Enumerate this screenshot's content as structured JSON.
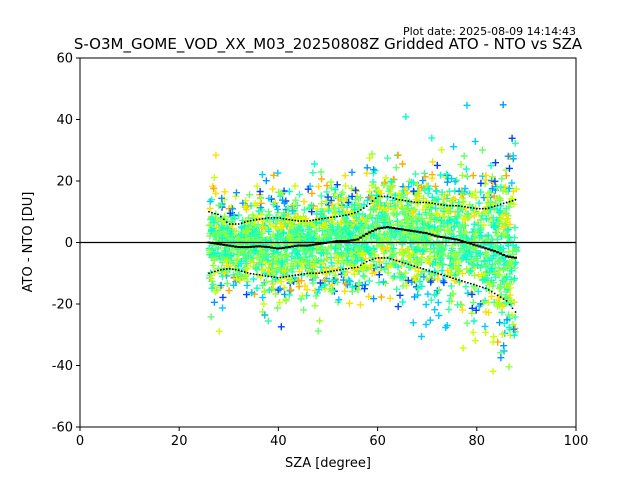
{
  "chart_data": {
    "type": "scatter",
    "title": "S-O3M_GOME_VOD_XX_M03_20250808Z Gridded ATO - NTO vs SZA",
    "plot_date": "Plot date: 2025-08-09 14:14:43",
    "xlabel": "SZA [degree]",
    "ylabel": "ATO - NTO [DU]",
    "xlim": [
      0,
      100
    ],
    "ylim": [
      -60,
      60
    ],
    "xticks": [
      0,
      20,
      40,
      60,
      80,
      100
    ],
    "yticks": [
      -60,
      -40,
      -20,
      0,
      20,
      40,
      60
    ],
    "grid": false,
    "zero_line": 0,
    "marker": "+",
    "point_colors": [
      "#00ffcc",
      "#33ffaa",
      "#66ff66",
      "#99ff33",
      "#ccff00",
      "#ffdd00",
      "#ffaa00",
      "#00ccff",
      "#0099ff",
      "#0044ff"
    ],
    "median_color": "#000000",
    "percentile_color": "#000000",
    "sza_range": [
      26,
      88
    ],
    "median": [
      [
        26,
        0
      ],
      [
        28,
        -0.5
      ],
      [
        30,
        -1
      ],
      [
        32,
        -1.5
      ],
      [
        34,
        -1.5
      ],
      [
        36,
        -1.2
      ],
      [
        38,
        -1.5
      ],
      [
        40,
        -2
      ],
      [
        42,
        -1.5
      ],
      [
        44,
        -1
      ],
      [
        46,
        -1
      ],
      [
        48,
        -0.5
      ],
      [
        50,
        0
      ],
      [
        52,
        0.5
      ],
      [
        54,
        0.5
      ],
      [
        56,
        1
      ],
      [
        58,
        3
      ],
      [
        60,
        4.5
      ],
      [
        62,
        5
      ],
      [
        64,
        4.5
      ],
      [
        66,
        4
      ],
      [
        68,
        3.5
      ],
      [
        70,
        3
      ],
      [
        72,
        2
      ],
      [
        74,
        1.5
      ],
      [
        76,
        1
      ],
      [
        78,
        0
      ],
      [
        80,
        -1
      ],
      [
        82,
        -2
      ],
      [
        84,
        -3
      ],
      [
        86,
        -4.5
      ],
      [
        88,
        -5
      ]
    ],
    "upper_percentile": [
      [
        26,
        10
      ],
      [
        28,
        9
      ],
      [
        30,
        6
      ],
      [
        32,
        6
      ],
      [
        34,
        7
      ],
      [
        36,
        7.5
      ],
      [
        38,
        8
      ],
      [
        40,
        8
      ],
      [
        42,
        7.5
      ],
      [
        44,
        7
      ],
      [
        46,
        7
      ],
      [
        48,
        7.5
      ],
      [
        50,
        8
      ],
      [
        52,
        8.5
      ],
      [
        54,
        9
      ],
      [
        56,
        10
      ],
      [
        58,
        12
      ],
      [
        60,
        15
      ],
      [
        62,
        15
      ],
      [
        64,
        14
      ],
      [
        66,
        13.5
      ],
      [
        68,
        13
      ],
      [
        70,
        13
      ],
      [
        72,
        12.5
      ],
      [
        74,
        12
      ],
      [
        76,
        12
      ],
      [
        78,
        11.5
      ],
      [
        80,
        11
      ],
      [
        82,
        11
      ],
      [
        84,
        12
      ],
      [
        86,
        13
      ],
      [
        88,
        14
      ]
    ],
    "lower_percentile": [
      [
        26,
        -10
      ],
      [
        28,
        -9
      ],
      [
        30,
        -8.5
      ],
      [
        32,
        -9
      ],
      [
        34,
        -10
      ],
      [
        36,
        -10.5
      ],
      [
        38,
        -11
      ],
      [
        40,
        -11.5
      ],
      [
        42,
        -11
      ],
      [
        44,
        -10.5
      ],
      [
        46,
        -10
      ],
      [
        48,
        -10
      ],
      [
        50,
        -9.5
      ],
      [
        52,
        -9
      ],
      [
        54,
        -8.5
      ],
      [
        56,
        -8
      ],
      [
        58,
        -6
      ],
      [
        60,
        -5
      ],
      [
        62,
        -5
      ],
      [
        64,
        -6
      ],
      [
        66,
        -7
      ],
      [
        68,
        -8
      ],
      [
        70,
        -9
      ],
      [
        72,
        -10
      ],
      [
        74,
        -11
      ],
      [
        76,
        -12
      ],
      [
        78,
        -13
      ],
      [
        80,
        -14
      ],
      [
        82,
        -15
      ],
      [
        84,
        -17
      ],
      [
        86,
        -19
      ],
      [
        88,
        -23
      ]
    ]
  }
}
